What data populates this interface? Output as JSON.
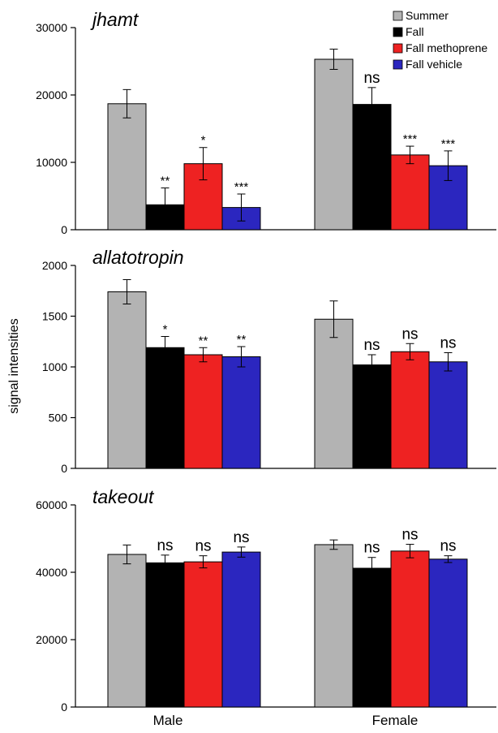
{
  "figure": {
    "ylabel": "signal intensities",
    "group_labels": [
      "Male",
      "Female"
    ],
    "legend": [
      {
        "name": "Summer",
        "color": "#b3b3b3"
      },
      {
        "name": "Fall",
        "color": "#000000"
      },
      {
        "name": "Fall methoprene",
        "color": "#ee2222"
      },
      {
        "name": "Fall vehicle",
        "color": "#2b26bf"
      }
    ]
  },
  "chart_data": [
    {
      "type": "bar",
      "title": "jhamt",
      "ylim": [
        0,
        30000
      ],
      "yticks": [
        0,
        10000,
        20000,
        30000
      ],
      "categories": [
        "Male",
        "Female"
      ],
      "series": [
        {
          "name": "Summer",
          "color": "#b3b3b3",
          "values": [
            18700,
            25300
          ],
          "errors": [
            2100,
            1500
          ],
          "significance": [
            "",
            ""
          ]
        },
        {
          "name": "Fall",
          "color": "#000000",
          "values": [
            3700,
            18600
          ],
          "errors": [
            2500,
            2500
          ],
          "significance": [
            "**",
            "ns"
          ]
        },
        {
          "name": "Fall methoprene",
          "color": "#ee2222",
          "values": [
            9800,
            11100
          ],
          "errors": [
            2400,
            1300
          ],
          "significance": [
            "*",
            "***"
          ]
        },
        {
          "name": "Fall vehicle",
          "color": "#2b26bf",
          "values": [
            3300,
            9500
          ],
          "errors": [
            2000,
            2200
          ],
          "significance": [
            "***",
            "***"
          ]
        }
      ]
    },
    {
      "type": "bar",
      "title": "allatotropin",
      "ylim": [
        0,
        2000
      ],
      "yticks": [
        0,
        500,
        1000,
        1500,
        2000
      ],
      "categories": [
        "Male",
        "Female"
      ],
      "series": [
        {
          "name": "Summer",
          "color": "#b3b3b3",
          "values": [
            1740,
            1470
          ],
          "errors": [
            120,
            180
          ],
          "significance": [
            "",
            ""
          ]
        },
        {
          "name": "Fall",
          "color": "#000000",
          "values": [
            1190,
            1020
          ],
          "errors": [
            110,
            100
          ],
          "significance": [
            "*",
            "ns"
          ]
        },
        {
          "name": "Fall methoprene",
          "color": "#ee2222",
          "values": [
            1120,
            1150
          ],
          "errors": [
            70,
            80
          ],
          "significance": [
            "**",
            "ns"
          ]
        },
        {
          "name": "Fall vehicle",
          "color": "#2b26bf",
          "values": [
            1100,
            1050
          ],
          "errors": [
            100,
            90
          ],
          "significance": [
            "**",
            "ns"
          ]
        }
      ]
    },
    {
      "type": "bar",
      "title": "takeout",
      "ylim": [
        0,
        60000
      ],
      "yticks": [
        0,
        20000,
        40000,
        60000
      ],
      "categories": [
        "Male",
        "Female"
      ],
      "series": [
        {
          "name": "Summer",
          "color": "#b3b3b3",
          "values": [
            45300,
            48200
          ],
          "errors": [
            2800,
            1400
          ],
          "significance": [
            "",
            ""
          ]
        },
        {
          "name": "Fall",
          "color": "#000000",
          "values": [
            42800,
            41200
          ],
          "errors": [
            2300,
            3200
          ],
          "significance": [
            "ns",
            "ns"
          ]
        },
        {
          "name": "Fall methoprene",
          "color": "#ee2222",
          "values": [
            43100,
            46300
          ],
          "errors": [
            1800,
            2000
          ],
          "significance": [
            "ns",
            "ns"
          ]
        },
        {
          "name": "Fall vehicle",
          "color": "#2b26bf",
          "values": [
            46000,
            43900
          ],
          "errors": [
            1500,
            1000
          ],
          "significance": [
            "ns",
            "ns"
          ]
        }
      ]
    }
  ]
}
